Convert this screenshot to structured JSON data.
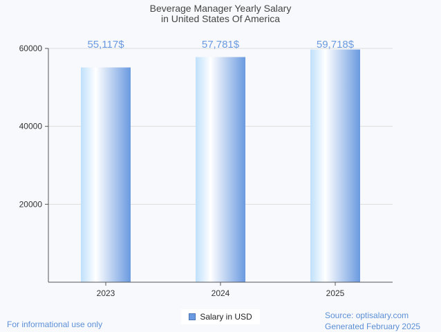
{
  "chart_data": {
    "type": "bar",
    "title_lines": [
      "Beverage Manager Yearly Salary",
      "in United States Of America"
    ],
    "categories": [
      "2023",
      "2024",
      "2025"
    ],
    "series": [
      {
        "name": "Salary in USD",
        "values": [
          55117,
          57781,
          59718
        ]
      }
    ],
    "data_labels": [
      "55,117$",
      "57,781$",
      "59,718$"
    ],
    "y_ticks": [
      20000,
      40000,
      60000
    ],
    "ylim": [
      0,
      60000
    ],
    "grid": true,
    "legend_position": "bottom-center",
    "colors": {
      "bar_light": "#ffffff",
      "bar_mid": "#bfe0fb",
      "bar_dark": "#6a9ae0",
      "label": "#6a9ae0"
    }
  },
  "footer": {
    "disclaimer": "For informational use only",
    "source": "Source: optisalary.com",
    "generated": "Generated February 2025"
  }
}
